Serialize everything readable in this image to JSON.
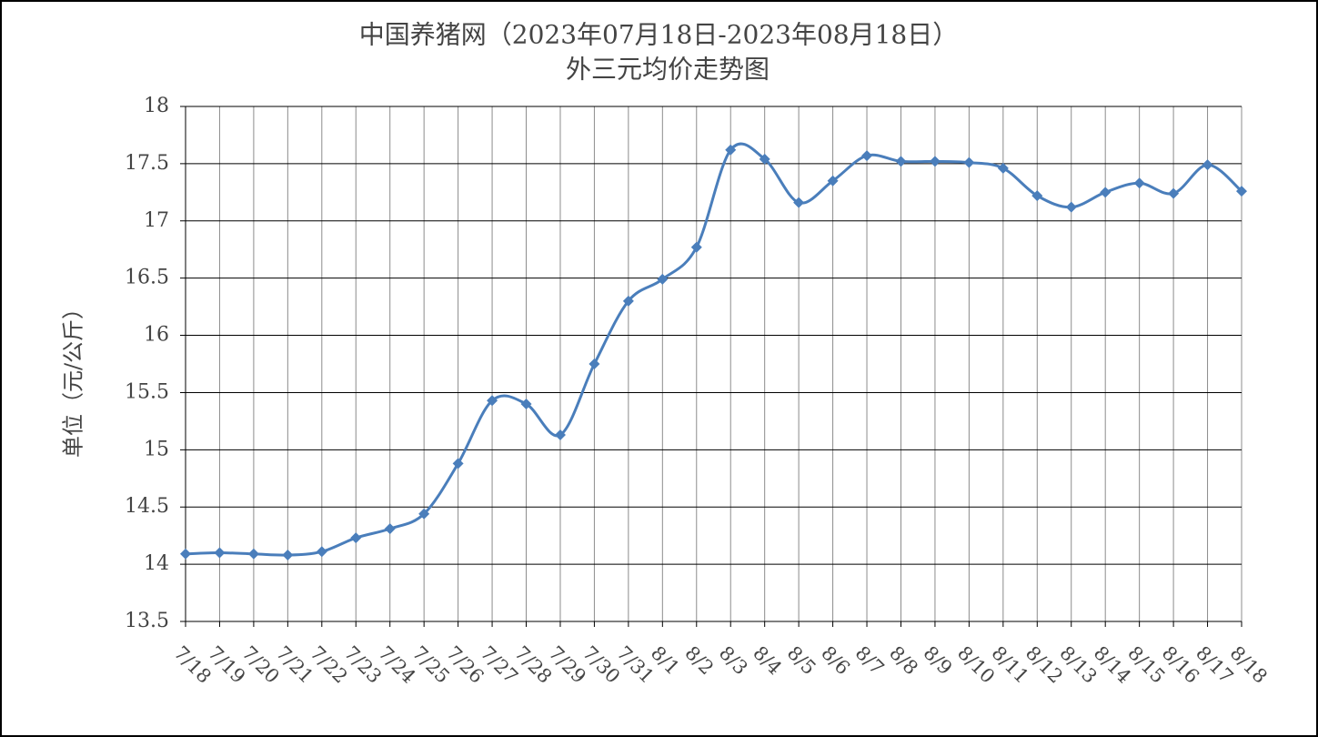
{
  "chart_data": {
    "type": "line",
    "title": [
      "中国养猪网（2023年07月18日-2023年08月18日）",
      "外三元均价走势图"
    ],
    "y_label": "单位（元/公斤）",
    "categories": [
      "7/18",
      "7/19",
      "7/20",
      "7/21",
      "7/22",
      "7/23",
      "7/24",
      "7/25",
      "7/26",
      "7/27",
      "7/28",
      "7/29",
      "7/30",
      "7/31",
      "8/1",
      "8/2",
      "8/3",
      "8/4",
      "8/5",
      "8/6",
      "8/7",
      "8/8",
      "8/9",
      "8/10",
      "8/11",
      "8/12",
      "8/13",
      "8/14",
      "8/15",
      "8/16",
      "8/17",
      "8/18"
    ],
    "series": [
      {
        "color": "#4a7ebb",
        "values": [
          14.09,
          14.1,
          14.09,
          14.08,
          14.11,
          14.23,
          14.31,
          14.44,
          14.88,
          15.43,
          15.4,
          15.13,
          15.75,
          16.3,
          16.49,
          16.77,
          17.62,
          17.54,
          17.16,
          17.35,
          17.57,
          17.52,
          17.52,
          17.51,
          17.46,
          17.22,
          17.12,
          17.25,
          17.33,
          17.24,
          17.49,
          17.26
        ]
      }
    ],
    "ylim": [
      13.5,
      18
    ],
    "yticks": [
      13.5,
      14,
      14.5,
      15,
      15.5,
      16,
      16.5,
      17,
      17.5,
      18
    ],
    "grid": true,
    "smooth": true
  }
}
